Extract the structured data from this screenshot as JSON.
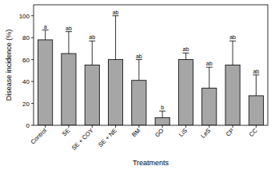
{
  "chart_data": {
    "type": "bar",
    "x_label": "Treatments",
    "y_label": "Disease incidence (%)",
    "categories": [
      "Control",
      "SE",
      "SE + COY",
      "SE + NE",
      "BM",
      "GO",
      "LiS",
      "LeS",
      "CP",
      "CC"
    ],
    "values": [
      78,
      65.5,
      55,
      60,
      41,
      7,
      60,
      34,
      55,
      27
    ],
    "errors": [
      9,
      20,
      22,
      40,
      19,
      6,
      6,
      19,
      22,
      19
    ],
    "annotations": [
      "a",
      "ab",
      "ab",
      "ab",
      "ab",
      "b",
      "ab",
      "ab",
      "ab",
      "ab"
    ],
    "color": "#a6a6a6",
    "ylim": [
      0,
      110
    ],
    "yticks": [
      0,
      20,
      40,
      60,
      80,
      100
    ],
    "grid": false
  }
}
